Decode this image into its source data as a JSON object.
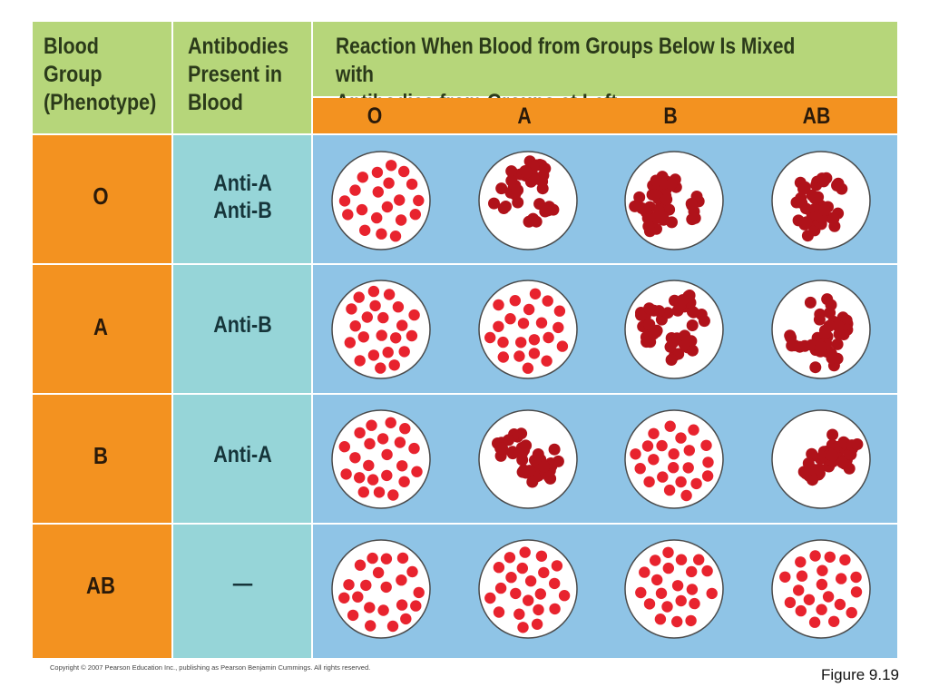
{
  "table": {
    "header": {
      "blood_group": "Blood\nGroup\n(Phenotype)",
      "antibodies": "Antibodies\nPresent in\nBlood",
      "reaction": "Reaction When Blood from Groups Below Is Mixed with\nAntibodies from Groups at Left"
    },
    "columns": [
      "O",
      "A",
      "B",
      "AB"
    ],
    "rows": [
      {
        "group": "O",
        "antibodies": "Anti-A\nAnti-B",
        "reactions": [
          "normal",
          "agglutinated",
          "agglutinated",
          "agglutinated"
        ]
      },
      {
        "group": "A",
        "antibodies": "Anti-B",
        "reactions": [
          "normal",
          "normal",
          "agglutinated",
          "agglutinated"
        ]
      },
      {
        "group": "B",
        "antibodies": "Anti-A",
        "reactions": [
          "normal",
          "agglutinated",
          "normal",
          "agglutinated"
        ]
      },
      {
        "group": "AB",
        "antibodies": "—",
        "reactions": [
          "normal",
          "normal",
          "normal",
          "normal"
        ]
      }
    ]
  },
  "colors": {
    "header_green": "#b6d67a",
    "group_orange": "#f39220",
    "antibody_teal": "#96d5d8",
    "reaction_blue": "#8fc4e6",
    "normal_cell": "#e8232e",
    "clumped_cell": "#b0121a"
  },
  "footer": {
    "copyright": "Copyright © 2007 Pearson Education Inc., publishing as Pearson Benjamin Cummings. All rights reserved.",
    "figure": "Figure 9.19"
  }
}
